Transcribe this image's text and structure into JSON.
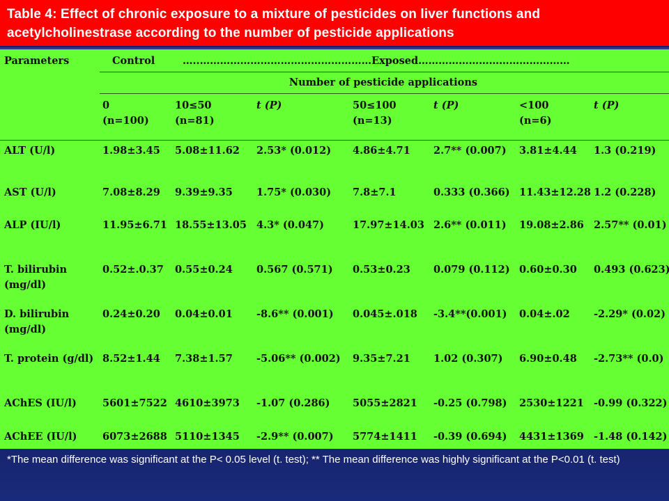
{
  "title": "Table 4: Effect of chronic exposure to a mixture of pesticides on liver functions and acetylcholinestrase according to the number of pesticide applications",
  "header": {
    "parameters": "Parameters",
    "control": "Control",
    "exposed": "…..……………………………………………Exposed………………………………………",
    "num_applications": "Number of pesticide applications",
    "col_control_top": "0",
    "col_control_bottom": "(n=100)",
    "col_g1_top": "10≤50",
    "col_g1_bottom": "(n=81)",
    "col_t1": "t (P)",
    "col_g2_top": "50≤100",
    "col_g2_bottom": "(n=13)",
    "col_t2": "t (P)",
    "col_g3_top": "<100",
    "col_g3_bottom": "(n=6)",
    "col_t3": "t (P)"
  },
  "rows": [
    {
      "param": "ALT (U/l)",
      "param2": "",
      "control": "1.98±3.45",
      "g1": "5.08±11.62",
      "t1": "2.53* (0.012)",
      "g2": "4.86±4.71",
      "t2": "2.7** (0.007)",
      "g3": "3.81±4.44",
      "t3": "1.3  (0.219)"
    },
    {
      "param": "AST (U/l)",
      "param2": "",
      "control": "7.08±8.29",
      "g1": "9.39±9.35",
      "t1": "1.75* (0.030)",
      "g2": "7.8±7.1",
      "t2": "0.333 (0.366)",
      "g3": "11.43±12.28",
      "t3": "1.2  (0.228)"
    },
    {
      "param": "ALP (IU/l)",
      "param2": "",
      "control": "11.95±6.71",
      "g1": "18.55±13.05",
      "t1": "4.3* (0.047)",
      "g2": "17.97±14.03",
      "t2": "2.6** (0.011)",
      "g3": "19.08±2.86",
      "t3": "2.57** (0.01)"
    },
    {
      "param": "T. bilirubin",
      "param2": "(mg/dl)",
      "control": "0.52±.0.37",
      "g1": "0.55±0.24",
      "t1": "0.567 (0.571)",
      "g2": "0.53±0.23",
      "t2": "0.079 (0.112)",
      "g3": "0.60±0.30",
      "t3": "0.493 (0.623)"
    },
    {
      "param": "D. bilirubin",
      "param2": "(mg/dl)",
      "control": "0.24±0.20",
      "g1": "0.04±0.01",
      "t1": "-8.6** (0.001)",
      "g2": "0.045±.018",
      "t2": "-3.4**(0.001)",
      "g3": "0.04±.02",
      "t3": "-2.29* (0.02)"
    },
    {
      "param": "T. protein (g/dl)",
      "param2": "",
      "control": "8.52±1.44",
      "g1": "7.38±1.57",
      "t1": "-5.06** (0.002)",
      "g2": "9.35±7.21",
      "t2": "1.02 (0.307)",
      "g3": "6.90±0.48",
      "t3": "-2.73** (0.0)"
    },
    {
      "param": "AChES (IU/l)",
      "param2": "",
      "control": "5601±7522",
      "g1": "4610±3973",
      "t1": "-1.07 (0.286)",
      "g2": "5055±2821",
      "t2": "-0.25 (0.798)",
      "g3": "2530±1221",
      "t3": "-0.99 (0.322)"
    },
    {
      "param": "AChEE (IU/l)",
      "param2": "",
      "control": "6073±2688",
      "g1": "5110±1345",
      "t1": "-2.9** (0.007)",
      "g2": "5774±1411",
      "t2": "-0.39 (0.694)",
      "g3": "4431±1369",
      "t3": "-1.48 (0.142)"
    }
  ],
  "footnote": "*The mean difference was significant at the P< 0.05 level (t. test); ** The mean difference was highly significant at the P<0.01 (t. test)"
}
